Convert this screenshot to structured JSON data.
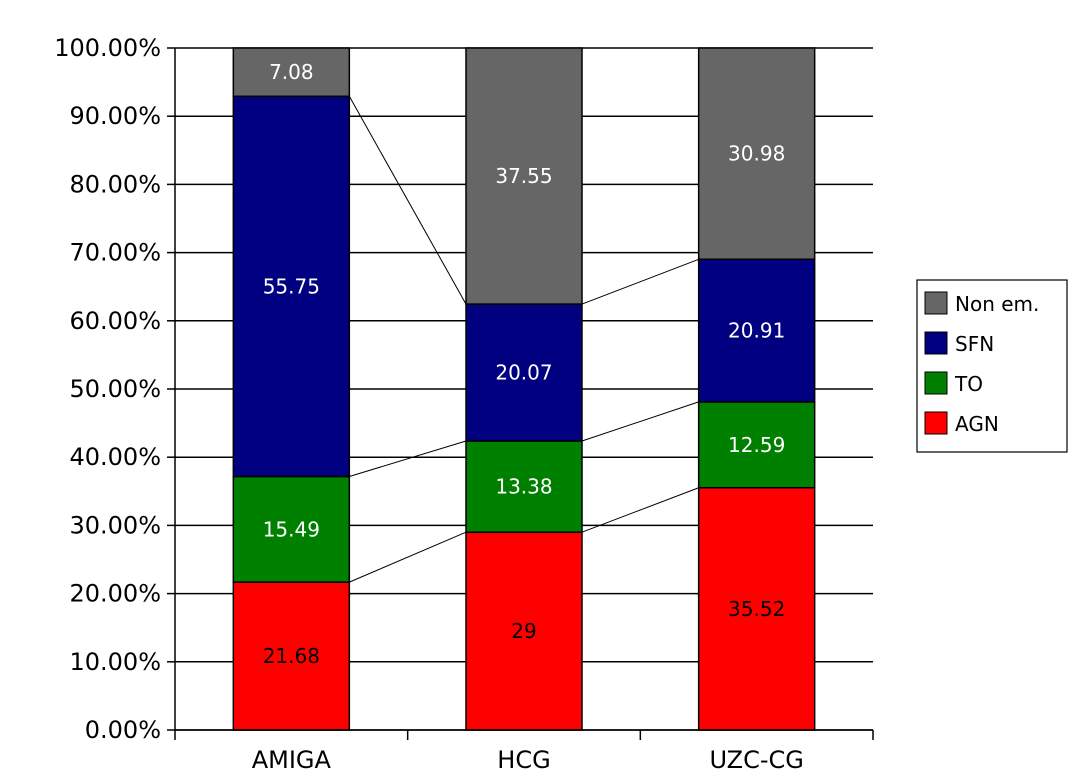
{
  "chart_data": {
    "type": "bar",
    "stacked": true,
    "title": "",
    "xlabel": "",
    "ylabel": "",
    "categories": [
      "AMIGA",
      "HCG",
      "UZC-CG"
    ],
    "series": [
      {
        "name": "AGN",
        "color": "#ff0000",
        "label_color": "#000000",
        "values": [
          21.68,
          29,
          35.52
        ],
        "labels": [
          "21.68",
          "29",
          "35.52"
        ]
      },
      {
        "name": "TO",
        "color": "#008000",
        "label_color": "#ffffff",
        "values": [
          15.49,
          13.38,
          12.59
        ],
        "labels": [
          "15.49",
          "13.38",
          "12.59"
        ]
      },
      {
        "name": "SFN",
        "color": "#000080",
        "label_color": "#ffffff",
        "values": [
          55.75,
          20.07,
          20.91
        ],
        "labels": [
          "55.75",
          "20.07",
          "20.91"
        ]
      },
      {
        "name": "Non em.",
        "color": "#666666",
        "label_color": "#ffffff",
        "values": [
          7.08,
          37.55,
          30.98
        ],
        "labels": [
          "7.08",
          "37.55",
          "30.98"
        ]
      }
    ],
    "ylim": [
      0,
      100
    ],
    "yticks": [
      {
        "value": 0,
        "label": "0.00%"
      },
      {
        "value": 10,
        "label": "10.00%"
      },
      {
        "value": 20,
        "label": "20.00%"
      },
      {
        "value": 30,
        "label": "30.00%"
      },
      {
        "value": 40,
        "label": "40.00%"
      },
      {
        "value": 50,
        "label": "50.00%"
      },
      {
        "value": 60,
        "label": "60.00%"
      },
      {
        "value": 70,
        "label": "70.00%"
      },
      {
        "value": 80,
        "label": "80.00%"
      },
      {
        "value": 90,
        "label": "90.00%"
      },
      {
        "value": 100,
        "label": "100.00%"
      }
    ],
    "grid": true,
    "connector_lines": true,
    "legend": {
      "placement": "right",
      "order": [
        "Non em.",
        "SFN",
        "TO",
        "AGN"
      ]
    }
  }
}
